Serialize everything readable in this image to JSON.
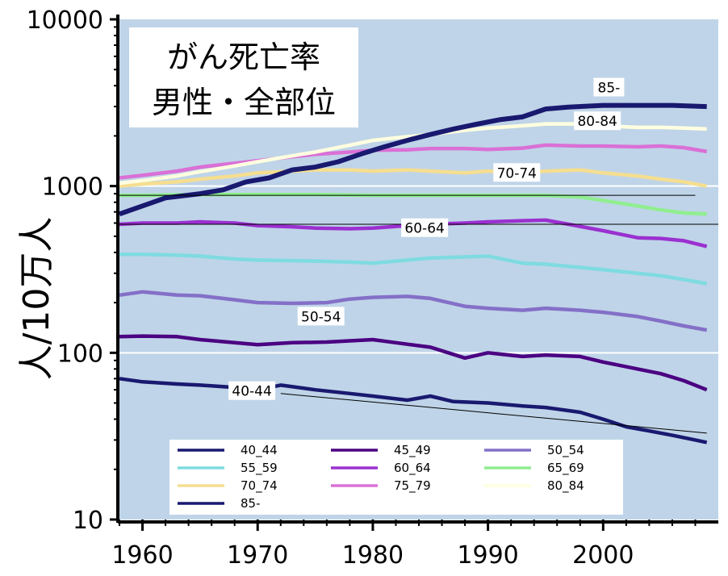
{
  "chart_data": {
    "type": "line",
    "title": [
      "がん死亡率",
      "男性・全部位"
    ],
    "ylabel": "人/10万人",
    "xlabel": "",
    "yscale": "log",
    "ylim": [
      10,
      10000
    ],
    "xlim": [
      1958,
      2010
    ],
    "xticks": [
      "1960",
      "1970",
      "1980",
      "1990",
      "2000"
    ],
    "xtick_values": [
      1960,
      1970,
      1980,
      1990,
      2000
    ],
    "yticks": [
      "10",
      "100",
      "1000",
      "10000"
    ],
    "ytick_values": [
      10,
      100,
      1000,
      10000
    ],
    "grid": "horizontal gridlines at 100 and 1000",
    "legend_position": "bottom-left, three columns",
    "series": [
      {
        "name": "40_44",
        "color": "#191970",
        "points": [
          [
            1958,
            70
          ],
          [
            1960,
            67
          ],
          [
            1963,
            65
          ],
          [
            1965,
            64
          ],
          [
            1968,
            62
          ],
          [
            1970,
            60
          ],
          [
            1972,
            64
          ],
          [
            1975,
            60
          ],
          [
            1978,
            57
          ],
          [
            1980,
            55
          ],
          [
            1983,
            52
          ],
          [
            1985,
            55
          ],
          [
            1987,
            51
          ],
          [
            1990,
            50
          ],
          [
            1993,
            48
          ],
          [
            1995,
            47
          ],
          [
            1998,
            44
          ],
          [
            2000,
            40
          ],
          [
            2002,
            36
          ],
          [
            2004,
            34
          ],
          [
            2006,
            32
          ],
          [
            2008,
            30
          ],
          [
            2009,
            29
          ]
        ]
      },
      {
        "name": "45_49",
        "color": "#4B0082",
        "points": [
          [
            1958,
            125
          ],
          [
            1960,
            126
          ],
          [
            1963,
            125
          ],
          [
            1965,
            120
          ],
          [
            1968,
            115
          ],
          [
            1970,
            112
          ],
          [
            1973,
            115
          ],
          [
            1976,
            116
          ],
          [
            1980,
            120
          ],
          [
            1982,
            115
          ],
          [
            1985,
            108
          ],
          [
            1988,
            93
          ],
          [
            1990,
            100
          ],
          [
            1993,
            95
          ],
          [
            1995,
            97
          ],
          [
            1998,
            95
          ],
          [
            2000,
            88
          ],
          [
            2003,
            80
          ],
          [
            2005,
            75
          ],
          [
            2007,
            68
          ],
          [
            2009,
            60
          ]
        ]
      },
      {
        "name": "50_54",
        "color": "#8470C8",
        "points": [
          [
            1958,
            222
          ],
          [
            1960,
            232
          ],
          [
            1963,
            222
          ],
          [
            1965,
            220
          ],
          [
            1968,
            208
          ],
          [
            1970,
            200
          ],
          [
            1973,
            198
          ],
          [
            1976,
            200
          ],
          [
            1978,
            210
          ],
          [
            1980,
            215
          ],
          [
            1983,
            218
          ],
          [
            1985,
            212
          ],
          [
            1988,
            190
          ],
          [
            1990,
            185
          ],
          [
            1993,
            180
          ],
          [
            1995,
            185
          ],
          [
            1998,
            180
          ],
          [
            2000,
            175
          ],
          [
            2003,
            165
          ],
          [
            2005,
            155
          ],
          [
            2007,
            145
          ],
          [
            2009,
            137
          ]
        ]
      },
      {
        "name": "55_59",
        "color": "#7FDBE0",
        "points": [
          [
            1958,
            390
          ],
          [
            1960,
            390
          ],
          [
            1963,
            385
          ],
          [
            1965,
            380
          ],
          [
            1968,
            365
          ],
          [
            1970,
            360
          ],
          [
            1975,
            355
          ],
          [
            1978,
            350
          ],
          [
            1980,
            345
          ],
          [
            1985,
            370
          ],
          [
            1990,
            380
          ],
          [
            1993,
            345
          ],
          [
            1995,
            340
          ],
          [
            1998,
            325
          ],
          [
            2000,
            315
          ],
          [
            2003,
            300
          ],
          [
            2005,
            290
          ],
          [
            2007,
            275
          ],
          [
            2009,
            260
          ]
        ]
      },
      {
        "name": "60_64",
        "color": "#9B30D0",
        "points": [
          [
            1958,
            590
          ],
          [
            1960,
            600
          ],
          [
            1963,
            600
          ],
          [
            1965,
            610
          ],
          [
            1968,
            600
          ],
          [
            1970,
            580
          ],
          [
            1973,
            570
          ],
          [
            1975,
            560
          ],
          [
            1978,
            555
          ],
          [
            1980,
            560
          ],
          [
            1983,
            580
          ],
          [
            1985,
            590
          ],
          [
            1988,
            600
          ],
          [
            1990,
            610
          ],
          [
            1993,
            620
          ],
          [
            1995,
            625
          ],
          [
            1997,
            590
          ],
          [
            2000,
            540
          ],
          [
            2003,
            490
          ],
          [
            2005,
            485
          ],
          [
            2007,
            470
          ],
          [
            2009,
            435
          ]
        ]
      },
      {
        "name": "65_69",
        "color": "#90EE90",
        "points": [
          [
            1958,
            880
          ],
          [
            1960,
            880
          ],
          [
            1965,
            890
          ],
          [
            1970,
            890
          ],
          [
            1975,
            890
          ],
          [
            1980,
            880
          ],
          [
            1985,
            880
          ],
          [
            1990,
            880
          ],
          [
            1995,
            880
          ],
          [
            1998,
            860
          ],
          [
            2000,
            820
          ],
          [
            2003,
            760
          ],
          [
            2005,
            720
          ],
          [
            2007,
            690
          ],
          [
            2009,
            680
          ]
        ]
      },
      {
        "name": "70_74",
        "color": "#F5DE90",
        "points": [
          [
            1958,
            1000
          ],
          [
            1960,
            1030
          ],
          [
            1963,
            1060
          ],
          [
            1965,
            1100
          ],
          [
            1968,
            1150
          ],
          [
            1970,
            1200
          ],
          [
            1973,
            1230
          ],
          [
            1975,
            1250
          ],
          [
            1978,
            1250
          ],
          [
            1980,
            1230
          ],
          [
            1983,
            1250
          ],
          [
            1985,
            1230
          ],
          [
            1988,
            1200
          ],
          [
            1990,
            1230
          ],
          [
            1993,
            1200
          ],
          [
            1995,
            1230
          ],
          [
            1998,
            1250
          ],
          [
            2000,
            1200
          ],
          [
            2003,
            1150
          ],
          [
            2005,
            1100
          ],
          [
            2007,
            1060
          ],
          [
            2009,
            1000
          ]
        ]
      },
      {
        "name": "75_79",
        "color": "#DA70D6",
        "points": [
          [
            1958,
            1120
          ],
          [
            1960,
            1160
          ],
          [
            1963,
            1230
          ],
          [
            1965,
            1300
          ],
          [
            1968,
            1370
          ],
          [
            1970,
            1420
          ],
          [
            1973,
            1500
          ],
          [
            1975,
            1550
          ],
          [
            1978,
            1600
          ],
          [
            1980,
            1640
          ],
          [
            1983,
            1650
          ],
          [
            1985,
            1680
          ],
          [
            1988,
            1680
          ],
          [
            1990,
            1660
          ],
          [
            1993,
            1690
          ],
          [
            1995,
            1760
          ],
          [
            1998,
            1740
          ],
          [
            2000,
            1740
          ],
          [
            2003,
            1720
          ],
          [
            2005,
            1740
          ],
          [
            2007,
            1700
          ],
          [
            2009,
            1610
          ]
        ]
      },
      {
        "name": "80_84",
        "color": "#FFFFE0",
        "points": [
          [
            1958,
            1040
          ],
          [
            1960,
            1080
          ],
          [
            1963,
            1150
          ],
          [
            1965,
            1220
          ],
          [
            1968,
            1320
          ],
          [
            1970,
            1400
          ],
          [
            1973,
            1520
          ],
          [
            1975,
            1600
          ],
          [
            1978,
            1760
          ],
          [
            1980,
            1880
          ],
          [
            1983,
            1980
          ],
          [
            1985,
            2040
          ],
          [
            1988,
            2160
          ],
          [
            1990,
            2230
          ],
          [
            1993,
            2300
          ],
          [
            1995,
            2360
          ],
          [
            1998,
            2360
          ],
          [
            2000,
            2300
          ],
          [
            2003,
            2250
          ],
          [
            2005,
            2250
          ],
          [
            2007,
            2230
          ],
          [
            2009,
            2200
          ]
        ]
      },
      {
        "name": "85-",
        "color": "#191970",
        "points": [
          [
            1958,
            680
          ],
          [
            1960,
            760
          ],
          [
            1962,
            850
          ],
          [
            1965,
            900
          ],
          [
            1967,
            950
          ],
          [
            1969,
            1060
          ],
          [
            1971,
            1120
          ],
          [
            1973,
            1250
          ],
          [
            1975,
            1300
          ],
          [
            1977,
            1400
          ],
          [
            1979,
            1560
          ],
          [
            1981,
            1720
          ],
          [
            1983,
            1880
          ],
          [
            1985,
            2040
          ],
          [
            1987,
            2200
          ],
          [
            1989,
            2350
          ],
          [
            1991,
            2500
          ],
          [
            1993,
            2600
          ],
          [
            1995,
            2900
          ],
          [
            1997,
            2980
          ],
          [
            2000,
            3050
          ],
          [
            2003,
            3050
          ],
          [
            2006,
            3050
          ],
          [
            2009,
            3000
          ]
        ]
      }
    ],
    "annotations": [
      "85-",
      "80-84",
      "70-74",
      "60-64",
      "50-54",
      "40-44"
    ]
  }
}
